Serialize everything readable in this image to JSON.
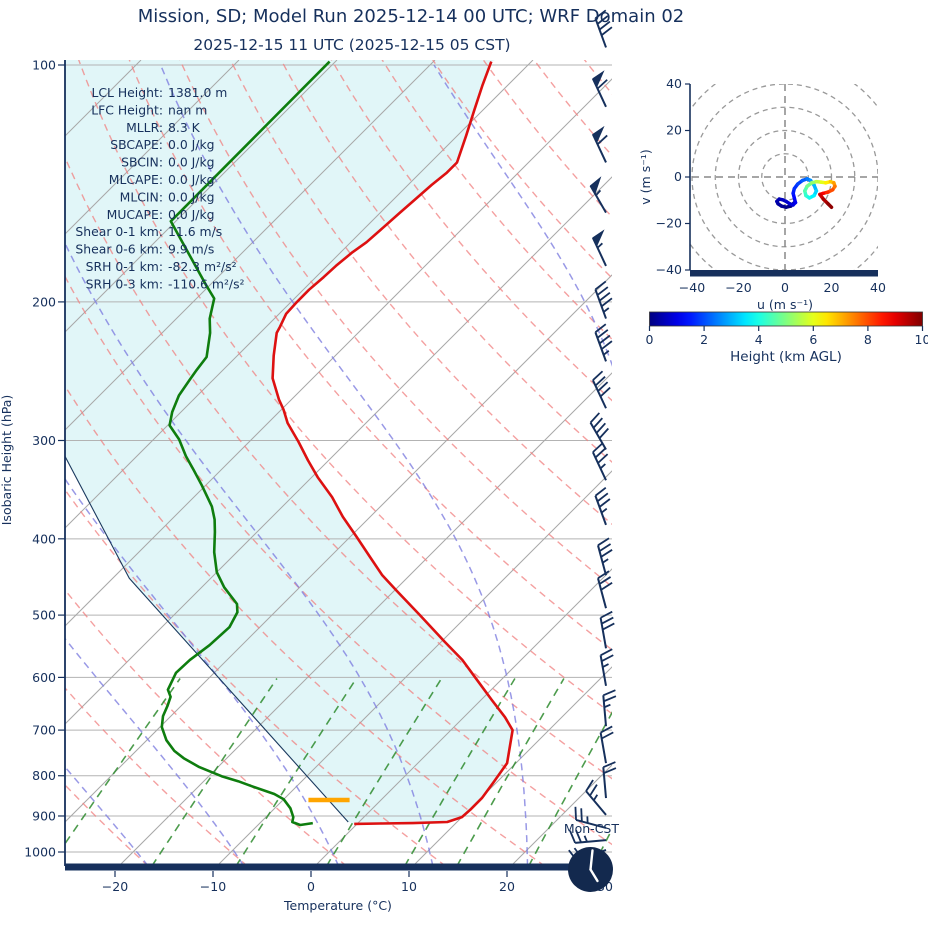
{
  "title": "Mission, SD; Model Run 2025-12-14 00 UTC; WRF Domain 02",
  "subtitle": "2025-12-15 11 UTC  (2025-12-15 05 CST)",
  "footer": {
    "timezone_label": "Mon-CST",
    "clock_time": "5:00"
  },
  "skewt": {
    "ylabel": "Isobaric Height (hPa)",
    "xlabel": "Temperature (°C)",
    "annotations": [
      {
        "label": "LCL Height:",
        "value": "1381.0 m"
      },
      {
        "label": "LFC Height:",
        "value": "nan m"
      },
      {
        "label": "MLLR:",
        "value": "8.3 K"
      },
      {
        "label": "SBCAPE:",
        "value": "0.0 J/kg"
      },
      {
        "label": "SBCIN:",
        "value": "0.0 J/kg"
      },
      {
        "label": "MLCAPE:",
        "value": "0.0 J/kg"
      },
      {
        "label": "MLCIN:",
        "value": "0.0 J/kg"
      },
      {
        "label": "MUCAPE:",
        "value": "0.0 J/kg"
      },
      {
        "label": "Shear 0-1 km:",
        "value": "11.6 m/s"
      },
      {
        "label": "Shear 0-6 km:",
        "value": "9.9 m/s"
      },
      {
        "label": "SRH 0-1 km:",
        "value": "-82.3 m²/s²"
      },
      {
        "label": "SRH 0-3 km:",
        "value": "-110.6 m²/s²"
      }
    ]
  },
  "hodograph": {
    "xlabel": "u (m s⁻¹)",
    "ylabel": "v (m s⁻¹)",
    "ticks": [
      -40,
      -20,
      0,
      20,
      40
    ],
    "ring_radii_ms": [
      10,
      20,
      30,
      40,
      50
    ]
  },
  "colorbar": {
    "label": "Height (km AGL)",
    "ticks": [
      0,
      2,
      4,
      6,
      8,
      10
    ],
    "min": 0,
    "max": 10
  },
  "colors": {
    "temperature": "#dd1111",
    "dewpoint": "#0e7d0e",
    "parcel": "#1b3a5f",
    "isotherm": "#a8a8a8",
    "dry_adiabat": "#f08080",
    "moist_adiabat": "#7f7fe0",
    "mixing_ratio": "#2e8b2e",
    "shade": "#e1f6f8",
    "axis": "#16305c",
    "lcl": "#ffa500"
  },
  "chart_data": [
    {
      "type": "line",
      "name": "skew_t_log_p",
      "xlabel": "Temperature (°C)",
      "ylabel": "Isobaric Height (hPa)",
      "x_ticks": [
        -20,
        -10,
        0,
        10,
        20,
        30
      ],
      "y_ticks": [
        100,
        200,
        300,
        400,
        500,
        600,
        700,
        800,
        900,
        1000
      ],
      "pressure_range_hpa": [
        100,
        1042
      ],
      "series": [
        {
          "name": "temperature",
          "units": "degC vs hPa",
          "points": [
            [
              99,
              -64.1
            ],
            [
              106,
              -62.6
            ],
            [
              114,
              -60.9
            ],
            [
              123,
              -59.1
            ],
            [
              133,
              -57.3
            ],
            [
              137,
              -57.3
            ],
            [
              142,
              -57.6
            ],
            [
              148,
              -57.8
            ],
            [
              154,
              -58.0
            ],
            [
              161,
              -58.2
            ],
            [
              168,
              -58.4
            ],
            [
              173,
              -58.8
            ],
            [
              180,
              -59.1
            ],
            [
              186,
              -59.2
            ],
            [
              193,
              -59.4
            ],
            [
              200,
              -59.4
            ],
            [
              207,
              -59.3
            ],
            [
              215,
              -58.6
            ],
            [
              219,
              -58.3
            ],
            [
              234,
              -56.3
            ],
            [
              250,
              -54.1
            ],
            [
              266,
              -51.3
            ],
            [
              274,
              -49.8
            ],
            [
              285,
              -48.0
            ],
            [
              301,
              -45.0
            ],
            [
              318,
              -42.1
            ],
            [
              334,
              -39.4
            ],
            [
              354,
              -35.9
            ],
            [
              375,
              -32.8
            ],
            [
              398,
              -29.3
            ],
            [
              422,
              -25.9
            ],
            [
              445,
              -22.8
            ],
            [
              466,
              -19.7
            ],
            [
              500,
              -14.9
            ],
            [
              541,
              -9.6
            ],
            [
              570,
              -6.0
            ],
            [
              605,
              -2.4
            ],
            [
              641,
              1.1
            ],
            [
              674,
              4.2
            ],
            [
              700,
              6.3
            ],
            [
              771,
              9.1
            ],
            [
              817,
              9.7
            ],
            [
              854,
              10.1
            ],
            [
              884,
              10.1
            ],
            [
              903,
              10.0
            ],
            [
              916,
              9.0
            ],
            [
              919,
              5.6
            ],
            [
              920,
              2.3
            ],
            [
              921,
              -0.3
            ]
          ]
        },
        {
          "name": "dewpoint",
          "units": "degC vs hPa",
          "points": [
            [
              99,
              -80.6
            ],
            [
              158,
              -80.5
            ],
            [
              190,
              -70.5
            ],
            [
              198,
              -68.2
            ],
            [
              210,
              -66.6
            ],
            [
              219,
              -65.1
            ],
            [
              235,
              -63.0
            ],
            [
              244,
              -62.7
            ],
            [
              251,
              -62.4
            ],
            [
              263,
              -61.9
            ],
            [
              276,
              -60.9
            ],
            [
              287,
              -59.8
            ],
            [
              299,
              -57.4
            ],
            [
              314,
              -55.0
            ],
            [
              327,
              -52.8
            ],
            [
              342,
              -50.4
            ],
            [
              364,
              -47.2
            ],
            [
              378,
              -45.6
            ],
            [
              392,
              -44.3
            ],
            [
              416,
              -42.3
            ],
            [
              441,
              -40.0
            ],
            [
              461,
              -37.7
            ],
            [
              484,
              -34.7
            ],
            [
              496,
              -33.8
            ],
            [
              518,
              -33.1
            ],
            [
              546,
              -33.3
            ],
            [
              570,
              -33.8
            ],
            [
              592,
              -33.9
            ],
            [
              622,
              -33.0
            ],
            [
              635,
              -32.0
            ],
            [
              652,
              -31.4
            ],
            [
              672,
              -30.8
            ],
            [
              694,
              -29.8
            ],
            [
              721,
              -28.0
            ],
            [
              744,
              -26.1
            ],
            [
              760,
              -24.4
            ],
            [
              780,
              -21.9
            ],
            [
              801,
              -18.7
            ],
            [
              813,
              -16.5
            ],
            [
              825,
              -14.6
            ],
            [
              844,
              -11.5
            ],
            [
              857,
              -10.0
            ],
            [
              880,
              -8.4
            ],
            [
              903,
              -7.2
            ],
            [
              916,
              -6.8
            ],
            [
              924,
              -5.7
            ],
            [
              919,
              -4.6
            ]
          ]
        },
        {
          "name": "surface_parcel",
          "units": "degC vs hPa",
          "points": [
            [
              305,
              -68.9
            ],
            [
              449,
              -48.3
            ],
            [
              916,
              -1.1
            ]
          ]
        }
      ],
      "lcl_marker": {
        "pressure_hpa": 859,
        "t_from": -7.4,
        "t_to": -3.2
      },
      "wind_barbs": [
        [
          95,
          40,
          340
        ],
        [
          113,
          60,
          335
        ],
        [
          133,
          60,
          335
        ],
        [
          154,
          55,
          330
        ],
        [
          180,
          55,
          335
        ],
        [
          210,
          45,
          340
        ],
        [
          238,
          45,
          340
        ],
        [
          273,
          40,
          335
        ],
        [
          308,
          40,
          330
        ],
        [
          337,
          35,
          335
        ],
        [
          384,
          35,
          340
        ],
        [
          445,
          35,
          345
        ],
        [
          490,
          30,
          345
        ],
        [
          551,
          30,
          350
        ],
        [
          615,
          25,
          350
        ],
        [
          692,
          25,
          355
        ],
        [
          771,
          20,
          350
        ],
        [
          854,
          20,
          355
        ],
        [
          897,
          25,
          320
        ],
        [
          932,
          25,
          285
        ],
        [
          966,
          25,
          265
        ],
        [
          994,
          20,
          250
        ]
      ],
      "background": {
        "isotherms_c": {
          "min": -160,
          "max": 40,
          "step": 10
        },
        "dry_adiabats_c": {
          "min": -40,
          "max": 200,
          "step": 10
        },
        "moist_adiabats_c": {
          "min": -60,
          "max": 40,
          "step": 10
        },
        "mixing_ratio_g_kg": [
          0.4,
          1,
          2,
          4,
          7,
          10,
          16,
          24,
          32
        ]
      }
    },
    {
      "type": "line",
      "name": "hodograph",
      "xlabel": "u (m s⁻¹)",
      "ylabel": "v (m s⁻¹)",
      "xlim": [
        -40,
        40
      ],
      "ylim": [
        -40,
        40
      ],
      "trace_u_v_km": [
        [
          4,
          -11,
          0
        ],
        [
          2.5,
          -12.5,
          0.05
        ],
        [
          0.5,
          -13,
          0.1
        ],
        [
          -1.5,
          -12.5,
          0.2
        ],
        [
          -3,
          -11.5,
          0.3
        ],
        [
          -3.5,
          -10.5,
          0.4
        ],
        [
          -2.5,
          -9.5,
          0.5
        ],
        [
          -1,
          -9.8,
          0.6
        ],
        [
          0.5,
          -10.5,
          0.7
        ],
        [
          2,
          -11.5,
          0.8
        ],
        [
          3.5,
          -12,
          0.9
        ],
        [
          4.5,
          -11,
          1.0
        ],
        [
          4,
          -9,
          1.2
        ],
        [
          3.5,
          -7,
          1.4
        ],
        [
          4,
          -5,
          1.6
        ],
        [
          5.5,
          -3,
          1.8
        ],
        [
          7.5,
          -1.5,
          2.0
        ],
        [
          9.5,
          -0.8,
          2.3
        ],
        [
          11,
          -1.5,
          2.6
        ],
        [
          12.5,
          -3.5,
          2.9
        ],
        [
          13.5,
          -6,
          3.2
        ],
        [
          12.5,
          -8,
          3.5
        ],
        [
          10.5,
          -9,
          3.8
        ],
        [
          9,
          -8,
          4.1
        ],
        [
          8.5,
          -6,
          4.4
        ],
        [
          9.5,
          -4,
          4.7
        ],
        [
          11.5,
          -2.5,
          5.0
        ],
        [
          13.5,
          -2,
          5.4
        ],
        [
          15.5,
          -2.2,
          5.8
        ],
        [
          17.5,
          -2.5,
          6.2
        ],
        [
          19.5,
          -2,
          6.6
        ],
        [
          21,
          -2.5,
          7.0
        ],
        [
          21.5,
          -4,
          7.4
        ],
        [
          20.5,
          -5.5,
          7.8
        ],
        [
          18.5,
          -6.5,
          8.2
        ],
        [
          16.5,
          -7,
          8.6
        ],
        [
          15,
          -7.5,
          9.0
        ],
        [
          16.5,
          -9.5,
          9.4
        ],
        [
          18.5,
          -11.5,
          9.7
        ],
        [
          20,
          -13,
          10
        ]
      ],
      "colormap": "jet",
      "color_by": "height_km_agl"
    }
  ]
}
